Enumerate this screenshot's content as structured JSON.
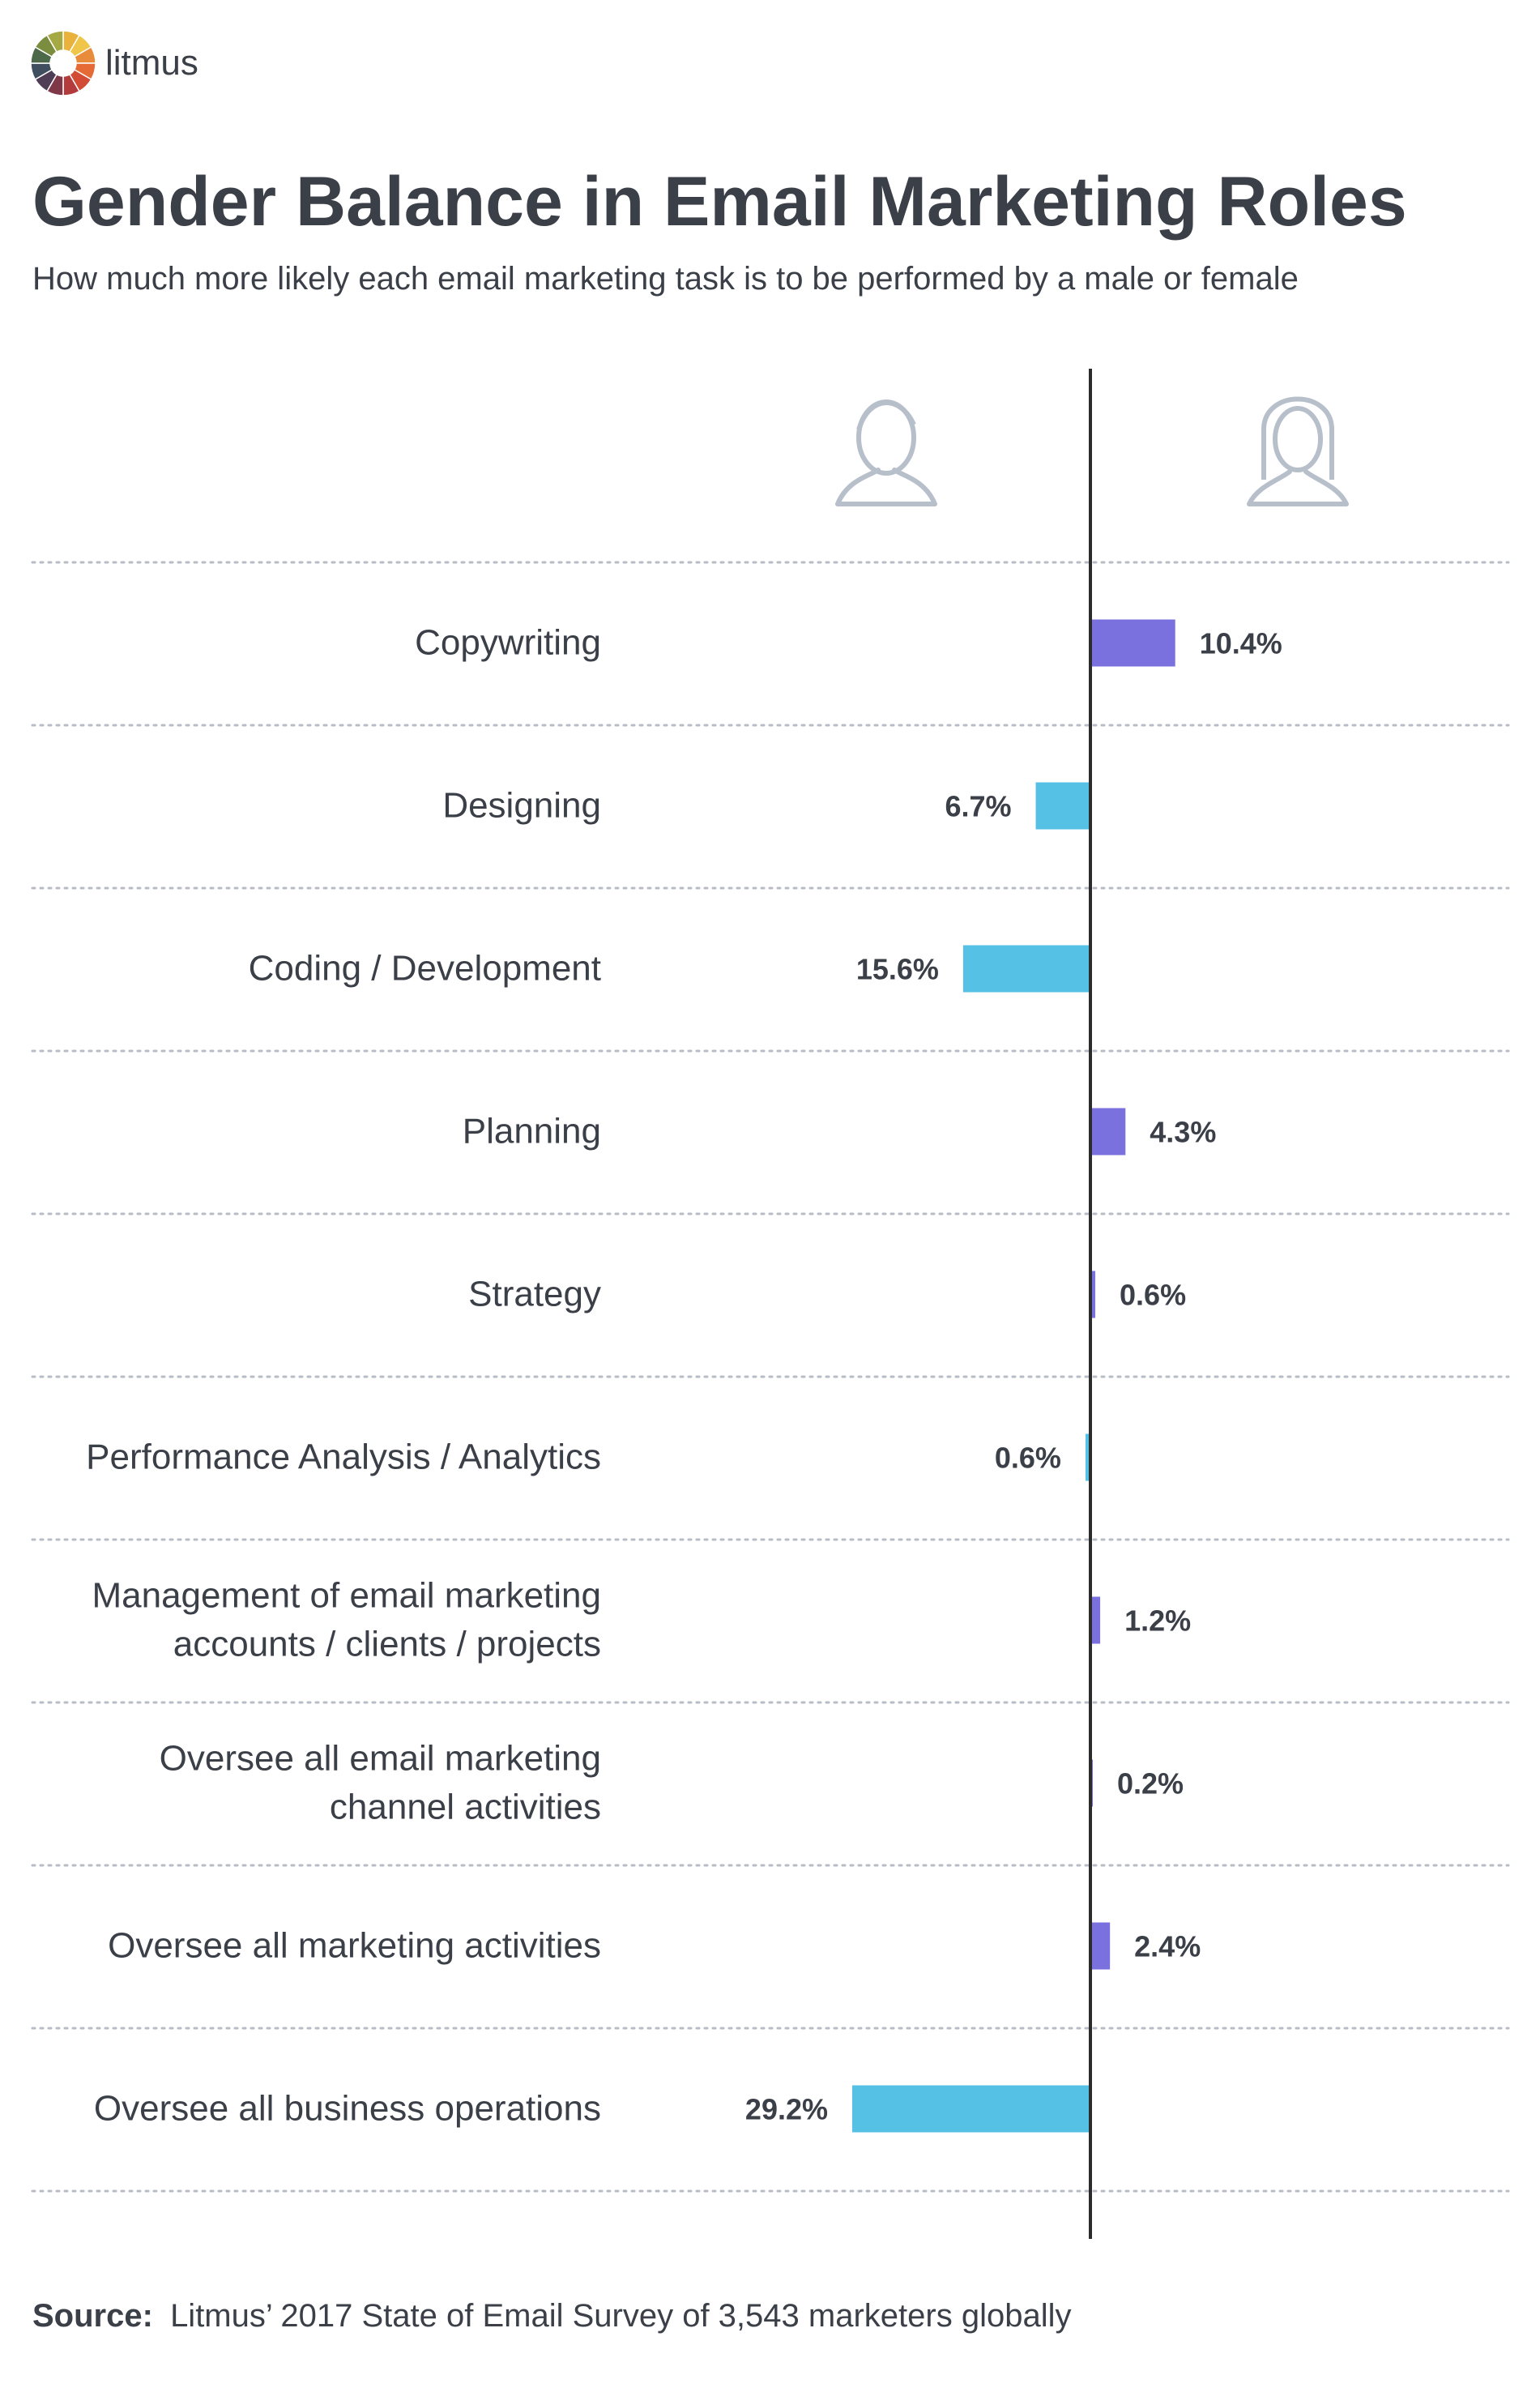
{
  "brand": {
    "name": "litmus"
  },
  "header": {
    "title": "Gender Balance in Email Marketing Roles",
    "subtitle": "How much more likely each email marketing task is to be performed by a male or female"
  },
  "legend": {
    "male_icon": "male-user-icon",
    "female_icon": "female-user-icon"
  },
  "colors": {
    "male": "#55c1e4",
    "female": "#7b71de",
    "axis": "#2c2c2c",
    "text": "#3b3f48",
    "divider": "#b7bcc6",
    "icon": "#b7bfca"
  },
  "chart_data": {
    "type": "bar",
    "orientation": "horizontal-diverging",
    "title": "Gender Balance in Email Marketing Roles",
    "subtitle": "How much more likely each email marketing task is to be performed by a male or female",
    "xlabel": "",
    "ylabel": "",
    "categories": [
      [
        "Copywriting"
      ],
      [
        "Designing"
      ],
      [
        "Coding / Development"
      ],
      [
        "Planning"
      ],
      [
        "Strategy"
      ],
      [
        "Performance Analysis / Analytics"
      ],
      [
        "Management of email marketing",
        "accounts / clients / projects"
      ],
      [
        "Oversee all email marketing",
        "channel activities"
      ],
      [
        "Oversee all marketing activities"
      ],
      [
        "Oversee all business operations"
      ]
    ],
    "values": [
      10.4,
      6.7,
      15.6,
      4.3,
      0.6,
      0.6,
      1.2,
      0.2,
      2.4,
      29.2
    ],
    "direction": [
      "female",
      "male",
      "male",
      "female",
      "female",
      "male",
      "female",
      "female",
      "female",
      "male"
    ],
    "labels": [
      "10.4%",
      "6.7%",
      "15.6%",
      "4.3%",
      "0.6%",
      "0.6%",
      "1.2%",
      "0.2%",
      "2.4%",
      "29.2%"
    ],
    "series": [
      {
        "name": "male",
        "side": "left"
      },
      {
        "name": "female",
        "side": "right"
      }
    ],
    "xlim": [
      -30,
      30
    ],
    "grid": false
  },
  "footer": {
    "source_label": "Source:",
    "source_text": "Litmus’ 2017 State of Email Survey of 3,543 marketers globally"
  }
}
